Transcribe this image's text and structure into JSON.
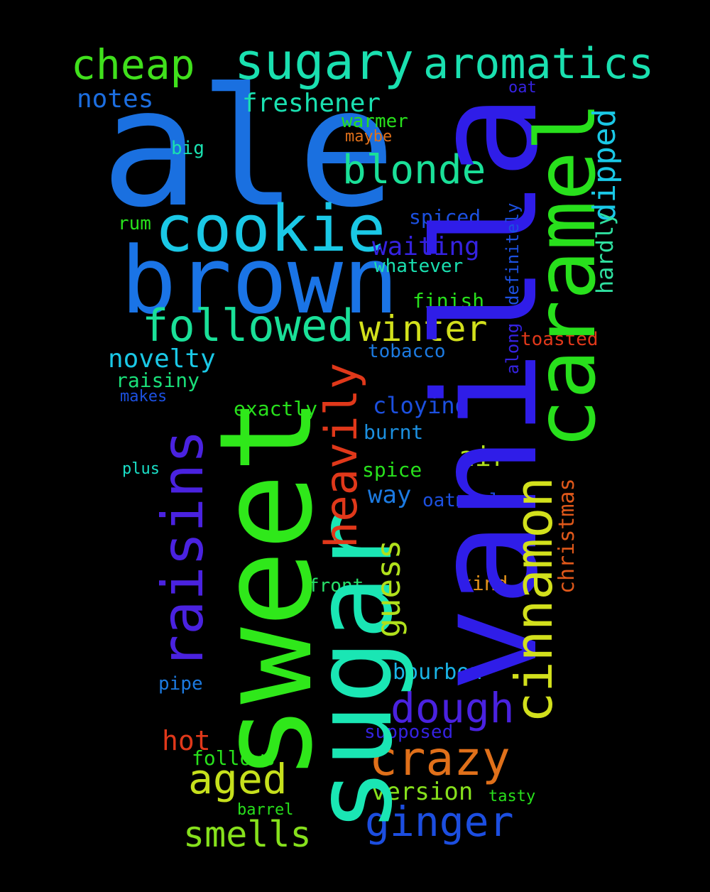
{
  "words": [
    {
      "text": "ale",
      "color": "#1a70e0"
    },
    {
      "text": "vanilla",
      "color": "#2f1de8"
    },
    {
      "text": "sweet",
      "color": "#2fe81a"
    },
    {
      "text": "sugar",
      "color": "#1ae6b4"
    },
    {
      "text": "brown",
      "color": "#1a74e6"
    },
    {
      "text": "caramel",
      "color": "#28e01c"
    },
    {
      "text": "cookie",
      "color": "#1ac8e6"
    },
    {
      "text": "sugary",
      "color": "#1ae0b0"
    },
    {
      "text": "aromatics",
      "color": "#1ae0b0"
    },
    {
      "text": "cheap",
      "color": "#40e01c"
    },
    {
      "text": "raisins",
      "color": "#4a22e0"
    },
    {
      "text": "cinnamon",
      "color": "#d2e01c"
    },
    {
      "text": "followed",
      "color": "#1ae098"
    },
    {
      "text": "crazy",
      "color": "#e0701a"
    },
    {
      "text": "heavily",
      "color": "#e0381a"
    },
    {
      "text": "ginger",
      "color": "#1c4ee0"
    },
    {
      "text": "dough",
      "color": "#4a22e0"
    },
    {
      "text": "blonde",
      "color": "#1ae098"
    },
    {
      "text": "winter",
      "color": "#d2e01c"
    },
    {
      "text": "aged",
      "color": "#c6e01c"
    },
    {
      "text": "smells",
      "color": "#86e01c"
    },
    {
      "text": "guess",
      "color": "#b0e01c"
    },
    {
      "text": "dipped",
      "color": "#1ac8e6"
    },
    {
      "text": "freshener",
      "color": "#1ae0b0"
    },
    {
      "text": "notes",
      "color": "#1c6ee0"
    },
    {
      "text": "waiting",
      "color": "#3522e0"
    },
    {
      "text": "novelty",
      "color": "#1ac8e6"
    },
    {
      "text": "version",
      "color": "#86e01c"
    },
    {
      "text": "hot",
      "color": "#e0381a"
    },
    {
      "text": "air",
      "color": "#b0e01c"
    },
    {
      "text": "hardly",
      "color": "#2fe0a0"
    },
    {
      "text": "christmas",
      "color": "#e0581a"
    },
    {
      "text": "definitely",
      "color": "#1c50e0"
    },
    {
      "text": "cloying",
      "color": "#1c50e0"
    },
    {
      "text": "way",
      "color": "#1c7ae0"
    },
    {
      "text": "bourbon",
      "color": "#1ab4e6"
    },
    {
      "text": "exactly",
      "color": "#28e01c"
    },
    {
      "text": "raisiny",
      "color": "#1ae07a"
    },
    {
      "text": "spiced",
      "color": "#1c50e0"
    },
    {
      "text": "toasted",
      "color": "#e0381a"
    },
    {
      "text": "finish",
      "color": "#28e01c"
    },
    {
      "text": "whatever",
      "color": "#1ae0b0"
    },
    {
      "text": "tobacco",
      "color": "#1c7ae0"
    },
    {
      "text": "burnt",
      "color": "#1c90e0"
    },
    {
      "text": "spice",
      "color": "#28e01c"
    },
    {
      "text": "oatmeal",
      "color": "#1c50e0"
    },
    {
      "text": "kind",
      "color": "#e0901a"
    },
    {
      "text": "front",
      "color": "#28e06a"
    },
    {
      "text": "along",
      "color": "#3522e0"
    },
    {
      "text": "supposed",
      "color": "#3522e0"
    },
    {
      "text": "follows",
      "color": "#28e01c"
    },
    {
      "text": "warmer",
      "color": "#28e01c"
    },
    {
      "text": "maybe",
      "color": "#e0701a"
    },
    {
      "text": "big",
      "color": "#1ae0b0"
    },
    {
      "text": "oat",
      "color": "#3522e0"
    },
    {
      "text": "rum",
      "color": "#28e01c"
    },
    {
      "text": "makes",
      "color": "#1c50e0"
    },
    {
      "text": "plus",
      "color": "#1ae0c8"
    },
    {
      "text": "pipe",
      "color": "#1c7ae0"
    },
    {
      "text": "barrel",
      "color": "#28e01c"
    },
    {
      "text": "tasty",
      "color": "#28e01c"
    }
  ]
}
